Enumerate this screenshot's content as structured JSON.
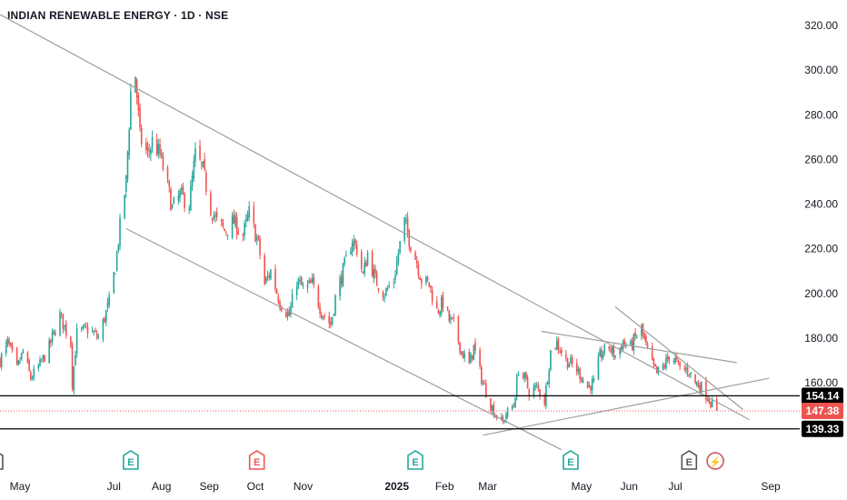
{
  "chart_data": {
    "type": "candlestick",
    "title": "INDIAN RENEWABLE ENERGY · 1D · NSE",
    "ylim": [
      129,
      326
    ],
    "y_ticks": [
      {
        "value": 160,
        "label": "160.00"
      },
      {
        "value": 180,
        "label": "180.00"
      },
      {
        "value": 200,
        "label": "200.00"
      },
      {
        "value": 220,
        "label": "220.00"
      },
      {
        "value": 240,
        "label": "240.00"
      },
      {
        "value": 260,
        "label": "260.00"
      },
      {
        "value": 280,
        "label": "280.00"
      },
      {
        "value": 300,
        "label": "300.00"
      },
      {
        "value": 320,
        "label": "320.00"
      }
    ],
    "x_ticks": [
      {
        "label": "May",
        "date": "2024-05-01",
        "bold": false
      },
      {
        "label": "Jul",
        "date": "2024-07-01",
        "bold": false
      },
      {
        "label": "Aug",
        "date": "2024-08-01",
        "bold": false
      },
      {
        "label": "Sep",
        "date": "2024-09-01",
        "bold": false
      },
      {
        "label": "Oct",
        "date": "2024-10-01",
        "bold": false
      },
      {
        "label": "Nov",
        "date": "2024-11-01",
        "bold": false
      },
      {
        "label": "2025",
        "date": "2025-01-01",
        "bold": true
      },
      {
        "label": "Feb",
        "date": "2025-02-01",
        "bold": false
      },
      {
        "label": "Mar",
        "date": "2025-03-01",
        "bold": false
      },
      {
        "label": "May",
        "date": "2025-05-01",
        "bold": false
      },
      {
        "label": "Jun",
        "date": "2025-06-01",
        "bold": false
      },
      {
        "label": "Jul",
        "date": "2025-07-01",
        "bold": false
      },
      {
        "label": "Sep",
        "date": "2025-09-01",
        "bold": false
      }
    ],
    "colors": {
      "up": "#26a69a",
      "down": "#ef5350",
      "trendline": "#9e9e9e",
      "level": "#000000",
      "current": "#ef5350"
    },
    "keypoints": [
      [
        "2024-04-18",
        170
      ],
      [
        "2024-04-23",
        178
      ],
      [
        "2024-04-29",
        166
      ],
      [
        "2024-05-03",
        174
      ],
      [
        "2024-05-08",
        162
      ],
      [
        "2024-05-14",
        168
      ],
      [
        "2024-05-20",
        176
      ],
      [
        "2024-05-27",
        190
      ],
      [
        "2024-06-03",
        178
      ],
      [
        "2024-06-04",
        160
      ],
      [
        "2024-06-07",
        182
      ],
      [
        "2024-06-14",
        184
      ],
      [
        "2024-06-21",
        180
      ],
      [
        "2024-06-28",
        196
      ],
      [
        "2024-07-02",
        212
      ],
      [
        "2024-07-05",
        230
      ],
      [
        "2024-07-09",
        250
      ],
      [
        "2024-07-12",
        290
      ],
      [
        "2024-07-15",
        298
      ],
      [
        "2024-07-18",
        270
      ],
      [
        "2024-07-23",
        262
      ],
      [
        "2024-07-26",
        268
      ],
      [
        "2024-07-31",
        262
      ],
      [
        "2024-08-05",
        248
      ],
      [
        "2024-08-08",
        238
      ],
      [
        "2024-08-13",
        244
      ],
      [
        "2024-08-19",
        240
      ],
      [
        "2024-08-23",
        262
      ],
      [
        "2024-08-28",
        255
      ],
      [
        "2024-09-02",
        238
      ],
      [
        "2024-09-06",
        232
      ],
      [
        "2024-09-11",
        228
      ],
      [
        "2024-09-17",
        232
      ],
      [
        "2024-09-23",
        226
      ],
      [
        "2024-09-27",
        236
      ],
      [
        "2024-10-03",
        222
      ],
      [
        "2024-10-07",
        204
      ],
      [
        "2024-10-11",
        210
      ],
      [
        "2024-10-17",
        196
      ],
      [
        "2024-10-23",
        190
      ],
      [
        "2024-10-28",
        206
      ],
      [
        "2024-11-01",
        202
      ],
      [
        "2024-11-07",
        204
      ],
      [
        "2024-11-13",
        192
      ],
      [
        "2024-11-19",
        186
      ],
      [
        "2024-11-22",
        198
      ],
      [
        "2024-11-27",
        210
      ],
      [
        "2024-12-03",
        224
      ],
      [
        "2024-12-06",
        220
      ],
      [
        "2024-12-10",
        208
      ],
      [
        "2024-12-13",
        218
      ],
      [
        "2024-12-18",
        206
      ],
      [
        "2024-12-24",
        200
      ],
      [
        "2024-12-30",
        206
      ],
      [
        "2025-01-03",
        222
      ],
      [
        "2025-01-06",
        232
      ],
      [
        "2025-01-10",
        222
      ],
      [
        "2025-01-14",
        214
      ],
      [
        "2025-01-17",
        206
      ],
      [
        "2025-01-22",
        204
      ],
      [
        "2025-01-27",
        192
      ],
      [
        "2025-01-31",
        196
      ],
      [
        "2025-02-04",
        188
      ],
      [
        "2025-02-07",
        186
      ],
      [
        "2025-02-12",
        174
      ],
      [
        "2025-02-17",
        168
      ],
      [
        "2025-02-20",
        176
      ],
      [
        "2025-02-25",
        162
      ],
      [
        "2025-03-03",
        150
      ],
      [
        "2025-03-06",
        146
      ],
      [
        "2025-03-11",
        142
      ],
      [
        "2025-03-13",
        146
      ],
      [
        "2025-03-18",
        150
      ],
      [
        "2025-03-21",
        166
      ],
      [
        "2025-03-25",
        162
      ],
      [
        "2025-03-28",
        156
      ],
      [
        "2025-04-02",
        158
      ],
      [
        "2025-04-07",
        152
      ],
      [
        "2025-04-11",
        174
      ],
      [
        "2025-04-15",
        178
      ],
      [
        "2025-04-21",
        170
      ],
      [
        "2025-04-25",
        168
      ],
      [
        "2025-04-30",
        164
      ],
      [
        "2025-05-05",
        158
      ],
      [
        "2025-05-09",
        160
      ],
      [
        "2025-05-13",
        172
      ],
      [
        "2025-05-19",
        176
      ],
      [
        "2025-05-23",
        172
      ],
      [
        "2025-05-28",
        178
      ],
      [
        "2025-06-02",
        176
      ],
      [
        "2025-06-05",
        180
      ],
      [
        "2025-06-09",
        184
      ],
      [
        "2025-06-12",
        176
      ],
      [
        "2025-06-16",
        168
      ],
      [
        "2025-06-19",
        164
      ],
      [
        "2025-06-24",
        168
      ],
      [
        "2025-06-27",
        172
      ],
      [
        "2025-07-01",
        170
      ],
      [
        "2025-07-04",
        166
      ],
      [
        "2025-07-09",
        166
      ],
      [
        "2025-07-14",
        160
      ],
      [
        "2025-07-18",
        158
      ],
      [
        "2025-07-22",
        154
      ],
      [
        "2025-07-25",
        150
      ],
      [
        "2025-07-28",
        147.38
      ]
    ],
    "trendlines": [
      {
        "p1": [
          "2024-04-15",
          326
        ],
        "p2": [
          "2025-08-18",
          143.5
        ]
      },
      {
        "p1": [
          "2024-07-09",
          229
        ],
        "p2": [
          "2025-04-18",
          130
        ]
      },
      {
        "p1": [
          "2025-02-26",
          136.5
        ],
        "p2": [
          "2025-08-31",
          162
        ]
      },
      {
        "p1": [
          "2025-04-05",
          183
        ],
        "p2": [
          "2025-08-10",
          169
        ]
      },
      {
        "p1": [
          "2025-05-23",
          194
        ],
        "p2": [
          "2025-08-14",
          148
        ]
      }
    ],
    "levels": [
      {
        "value": 154.14,
        "label": "154.14"
      },
      {
        "value": 139.33,
        "label": "139.33"
      }
    ],
    "current_price": {
      "value": 147.38,
      "label": "147.38"
    },
    "event_badges": [
      {
        "date": "2024-04-15",
        "letter": "E",
        "kind": "earnings-neutral"
      },
      {
        "date": "2024-07-12",
        "letter": "E",
        "kind": "earnings-positive"
      },
      {
        "date": "2024-10-02",
        "letter": "E",
        "kind": "earnings-negative"
      },
      {
        "date": "2025-01-13",
        "letter": "E",
        "kind": "earnings-positive"
      },
      {
        "date": "2025-04-24",
        "letter": "E",
        "kind": "earnings-positive"
      },
      {
        "date": "2025-07-10",
        "letter": "E",
        "kind": "earnings-neutral"
      },
      {
        "date": "2025-07-27",
        "letter": "⚡",
        "kind": "event-negative"
      }
    ]
  }
}
